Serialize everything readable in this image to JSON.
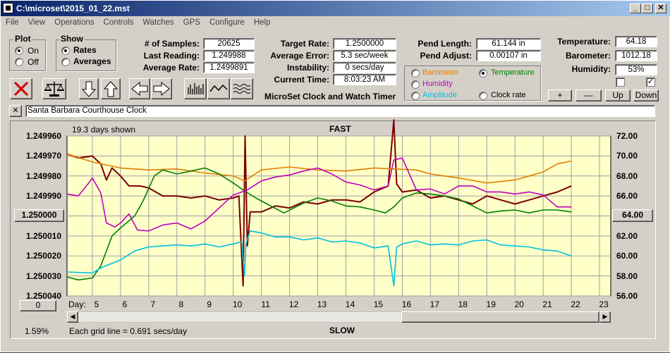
{
  "window": {
    "title": "C:\\microset\\2015_01_22.mst"
  },
  "menu": [
    "File",
    "View",
    "Operations",
    "Controls",
    "Watches",
    "GPS",
    "Configure",
    "Help"
  ],
  "plot_group": {
    "title": "Plot",
    "on": "On",
    "off": "Off",
    "selected": "On"
  },
  "show_group": {
    "title": "Show",
    "rates": "Rates",
    "averages": "Averages",
    "selected": "Rates"
  },
  "stats": {
    "samples_label": "# of Samples:",
    "samples": "20625",
    "last_label": "Last Reading:",
    "last": "1.249988",
    "avg_label": "Average Rate:",
    "avg": "1.2499891",
    "target_label": "Target Rate:",
    "target": "1.2500000",
    "avgerr_label": "Average Error:",
    "avgerr": "5.3 sec/week",
    "instab_label": "Instability:",
    "instab": "0 secs/day",
    "time_label": "Current Time:",
    "time": "8:03:23 AM",
    "pendlen_label": "Pend Length:",
    "pendlen": "61.144 in",
    "pendadj_label": "Pend Adjust:",
    "pendadj": "0.00107 in",
    "temp_label": "Temperature:",
    "temp": "64.18",
    "baro_label": "Barometer:",
    "baro": "1012.18",
    "hum_label": "Humidity:",
    "hum": "53%"
  },
  "app_name": "MicroSet Clock and Watch Timer",
  "sensor_options": {
    "barometer": "Barometer",
    "temperature": "Temperature",
    "humidity": "Humidity",
    "amplitude": "Amplitude",
    "clock_rate": "Clock rate",
    "selected": "Temperature",
    "colors": {
      "barometer": "#e08000",
      "temperature": "#008000",
      "humidity": "#c000c0",
      "amplitude": "#00c0e0",
      "clock_rate": "#000000"
    }
  },
  "adjust_buttons": {
    "plus": "+",
    "minus": "—",
    "up": "Up",
    "down": "Down"
  },
  "checkboxes": [
    false,
    true
  ],
  "clock_name": "Santa Barbara Courthouse Clock",
  "clear_label": "✕",
  "chart_header": {
    "days_shown": "19.3 days shown",
    "fast": "FAST",
    "slow": "SLOW",
    "grid_note": "Each grid line = 0.691 secs/day",
    "percent": "1.59%"
  },
  "left_box": "1.250000",
  "right_box": "64.00",
  "zero_box": "0",
  "chart_data": {
    "type": "line",
    "x_label_prefix": "Day:",
    "x_ticks": [
      "5",
      "6",
      "7",
      "8",
      "9",
      "10",
      "11",
      "12",
      "13",
      "14",
      "15",
      "16",
      "17",
      "18",
      "19",
      "20",
      "21",
      "22",
      "23"
    ],
    "y_left_ticks": [
      "1.249960",
      "1.249970",
      "1.249980",
      "1.249990",
      "1.250000",
      "1.250010",
      "1.250020",
      "1.250030",
      "1.250040"
    ],
    "y_right_ticks": [
      "72.00",
      "70.00",
      "68.00",
      "66.00",
      "64.00",
      "62.00",
      "60.00",
      "58.00",
      "56.00"
    ],
    "x_range": [
      4.1,
      23.4
    ],
    "ylim_left": [
      1.24996,
      1.25004
    ],
    "ylim_right": [
      56,
      72
    ],
    "grid": true,
    "series": [
      {
        "color": "#7a0000",
        "axis": "left",
        "points": [
          [
            4.1,
            1.249969
          ],
          [
            4.5,
            1.249971
          ],
          [
            5.0,
            1.24997
          ],
          [
            5.3,
            1.249974
          ],
          [
            5.5,
            1.249982
          ],
          [
            5.7,
            1.249976
          ],
          [
            6.0,
            1.24998
          ],
          [
            6.3,
            1.249985
          ],
          [
            6.7,
            1.249985
          ],
          [
            7.0,
            1.249986
          ],
          [
            7.5,
            1.24999
          ],
          [
            8.0,
            1.24999
          ],
          [
            8.5,
            1.249991
          ],
          [
            9.0,
            1.24999
          ],
          [
            9.5,
            1.249992
          ],
          [
            10.0,
            1.249991
          ],
          [
            10.2,
            1.24999
          ],
          [
            10.35,
            1.250035
          ],
          [
            10.42,
            1.24996
          ],
          [
            10.5,
            1.250015
          ],
          [
            10.6,
            1.249998
          ],
          [
            11.0,
            1.249998
          ],
          [
            11.5,
            1.249995
          ],
          [
            12.0,
            1.249996
          ],
          [
            12.5,
            1.249993
          ],
          [
            13.0,
            1.249994
          ],
          [
            13.5,
            1.249992
          ],
          [
            14.0,
            1.249992
          ],
          [
            14.5,
            1.249993
          ],
          [
            15.0,
            1.249988
          ],
          [
            15.5,
            1.249985
          ],
          [
            15.7,
            1.249952
          ],
          [
            15.8,
            1.249984
          ],
          [
            16.0,
            1.249988
          ],
          [
            16.5,
            1.249987
          ],
          [
            17.0,
            1.249991
          ],
          [
            17.5,
            1.24999
          ],
          [
            18.0,
            1.249992
          ],
          [
            18.5,
            1.249994
          ],
          [
            19.0,
            1.24999
          ],
          [
            19.5,
            1.249992
          ],
          [
            20.0,
            1.249994
          ],
          [
            20.5,
            1.249992
          ],
          [
            21.0,
            1.24999
          ],
          [
            21.5,
            1.249988
          ],
          [
            22.0,
            1.249985
          ]
        ]
      },
      {
        "color": "#e08000",
        "axis": "right",
        "points": [
          [
            4.1,
            70.2
          ],
          [
            5.0,
            69.4
          ],
          [
            6.0,
            68.8
          ],
          [
            7.0,
            68.6
          ],
          [
            8.0,
            68.7
          ],
          [
            9.0,
            68.3
          ],
          [
            10.0,
            68.0
          ],
          [
            10.4,
            67.5
          ],
          [
            11.0,
            68.6
          ],
          [
            12.0,
            68.9
          ],
          [
            13.0,
            68.6
          ],
          [
            14.0,
            68.5
          ],
          [
            15.0,
            68.8
          ],
          [
            15.7,
            68.7
          ],
          [
            16.5,
            68.6
          ],
          [
            17.0,
            68.2
          ],
          [
            18.0,
            67.8
          ],
          [
            19.0,
            67.3
          ],
          [
            20.0,
            67.6
          ],
          [
            20.5,
            68.0
          ],
          [
            21.0,
            68.4
          ],
          [
            21.5,
            69.2
          ],
          [
            22.0,
            69.5
          ]
        ]
      },
      {
        "color": "#008000",
        "axis": "right",
        "points": [
          [
            4.1,
            57.9
          ],
          [
            4.5,
            57.6
          ],
          [
            5.0,
            57.8
          ],
          [
            5.3,
            59.0
          ],
          [
            5.7,
            62.0
          ],
          [
            6.0,
            62.8
          ],
          [
            6.5,
            64.0
          ],
          [
            6.8,
            65.5
          ],
          [
            7.2,
            68.0
          ],
          [
            7.5,
            68.6
          ],
          [
            8.0,
            68.2
          ],
          [
            8.5,
            68.5
          ],
          [
            9.0,
            68.8
          ],
          [
            9.5,
            68.2
          ],
          [
            10.0,
            67.3
          ],
          [
            10.4,
            66.5
          ],
          [
            10.8,
            65.8
          ],
          [
            11.2,
            65.2
          ],
          [
            11.8,
            64.3
          ],
          [
            12.5,
            65.3
          ],
          [
            13.0,
            65.8
          ],
          [
            13.5,
            65.5
          ],
          [
            14.0,
            65.0
          ],
          [
            14.5,
            64.9
          ],
          [
            15.0,
            64.6
          ],
          [
            15.4,
            64.3
          ],
          [
            15.7,
            64.9
          ],
          [
            16.0,
            65.8
          ],
          [
            16.5,
            66.3
          ],
          [
            17.0,
            66.2
          ],
          [
            17.5,
            66.0
          ],
          [
            18.0,
            65.7
          ],
          [
            18.5,
            65.0
          ],
          [
            19.0,
            64.3
          ],
          [
            19.5,
            64.5
          ],
          [
            20.0,
            64.6
          ],
          [
            20.5,
            64.3
          ],
          [
            21.0,
            64.6
          ],
          [
            21.5,
            64.6
          ],
          [
            22.0,
            64.4
          ]
        ]
      },
      {
        "color": "#c000c0",
        "axis": "right",
        "points": [
          [
            4.1,
            66.2
          ],
          [
            4.5,
            66.0
          ],
          [
            4.9,
            67.4
          ],
          [
            5.0,
            67.8
          ],
          [
            5.3,
            66.3
          ],
          [
            5.5,
            63.3
          ],
          [
            5.8,
            62.9
          ],
          [
            6.0,
            63.3
          ],
          [
            6.3,
            64.2
          ],
          [
            6.6,
            62.6
          ],
          [
            7.0,
            62.5
          ],
          [
            7.5,
            63.1
          ],
          [
            8.0,
            63.3
          ],
          [
            8.5,
            62.7
          ],
          [
            9.0,
            63.5
          ],
          [
            9.5,
            64.8
          ],
          [
            10.0,
            66.1
          ],
          [
            10.5,
            66.6
          ],
          [
            11.0,
            67.5
          ],
          [
            11.5,
            67.9
          ],
          [
            12.0,
            68.1
          ],
          [
            12.5,
            68.5
          ],
          [
            13.0,
            68.8
          ],
          [
            13.5,
            68.2
          ],
          [
            14.0,
            67.4
          ],
          [
            14.5,
            67.1
          ],
          [
            15.0,
            66.6
          ],
          [
            15.5,
            67.0
          ],
          [
            15.7,
            69.6
          ],
          [
            16.0,
            69.8
          ],
          [
            16.5,
            66.6
          ],
          [
            17.0,
            66.7
          ],
          [
            17.5,
            66.2
          ],
          [
            18.0,
            67.0
          ],
          [
            18.5,
            67.0
          ],
          [
            19.0,
            66.4
          ],
          [
            19.5,
            66.4
          ],
          [
            20.0,
            66.2
          ],
          [
            20.5,
            66.4
          ],
          [
            21.0,
            66.1
          ],
          [
            21.5,
            64.9
          ],
          [
            22.0,
            64.9
          ]
        ]
      },
      {
        "color": "#00c0e0",
        "axis": "right",
        "points": [
          [
            4.1,
            58.4
          ],
          [
            5.0,
            58.3
          ],
          [
            5.3,
            58.8
          ],
          [
            6.0,
            59.6
          ],
          [
            6.5,
            60.5
          ],
          [
            7.0,
            60.9
          ],
          [
            7.5,
            61.0
          ],
          [
            8.0,
            61.1
          ],
          [
            8.5,
            61.0
          ],
          [
            9.0,
            61.2
          ],
          [
            9.5,
            60.9
          ],
          [
            10.0,
            61.2
          ],
          [
            10.3,
            61.4
          ],
          [
            10.4,
            58.0
          ],
          [
            10.45,
            61.2
          ],
          [
            10.6,
            62.5
          ],
          [
            11.0,
            62.3
          ],
          [
            11.5,
            61.9
          ],
          [
            12.0,
            61.9
          ],
          [
            12.5,
            61.6
          ],
          [
            13.0,
            61.8
          ],
          [
            13.5,
            61.4
          ],
          [
            14.0,
            61.5
          ],
          [
            14.5,
            61.3
          ],
          [
            15.0,
            60.8
          ],
          [
            15.5,
            61.0
          ],
          [
            15.7,
            57.0
          ],
          [
            15.8,
            60.9
          ],
          [
            16.0,
            61.2
          ],
          [
            16.5,
            61.5
          ],
          [
            17.0,
            61.1
          ],
          [
            17.5,
            61.2
          ],
          [
            18.0,
            61.1
          ],
          [
            18.5,
            61.5
          ],
          [
            19.0,
            61.6
          ],
          [
            19.5,
            61.1
          ],
          [
            20.0,
            61.0
          ],
          [
            20.5,
            60.9
          ],
          [
            21.0,
            60.6
          ],
          [
            21.5,
            60.5
          ],
          [
            22.0,
            60.0
          ]
        ]
      }
    ]
  }
}
